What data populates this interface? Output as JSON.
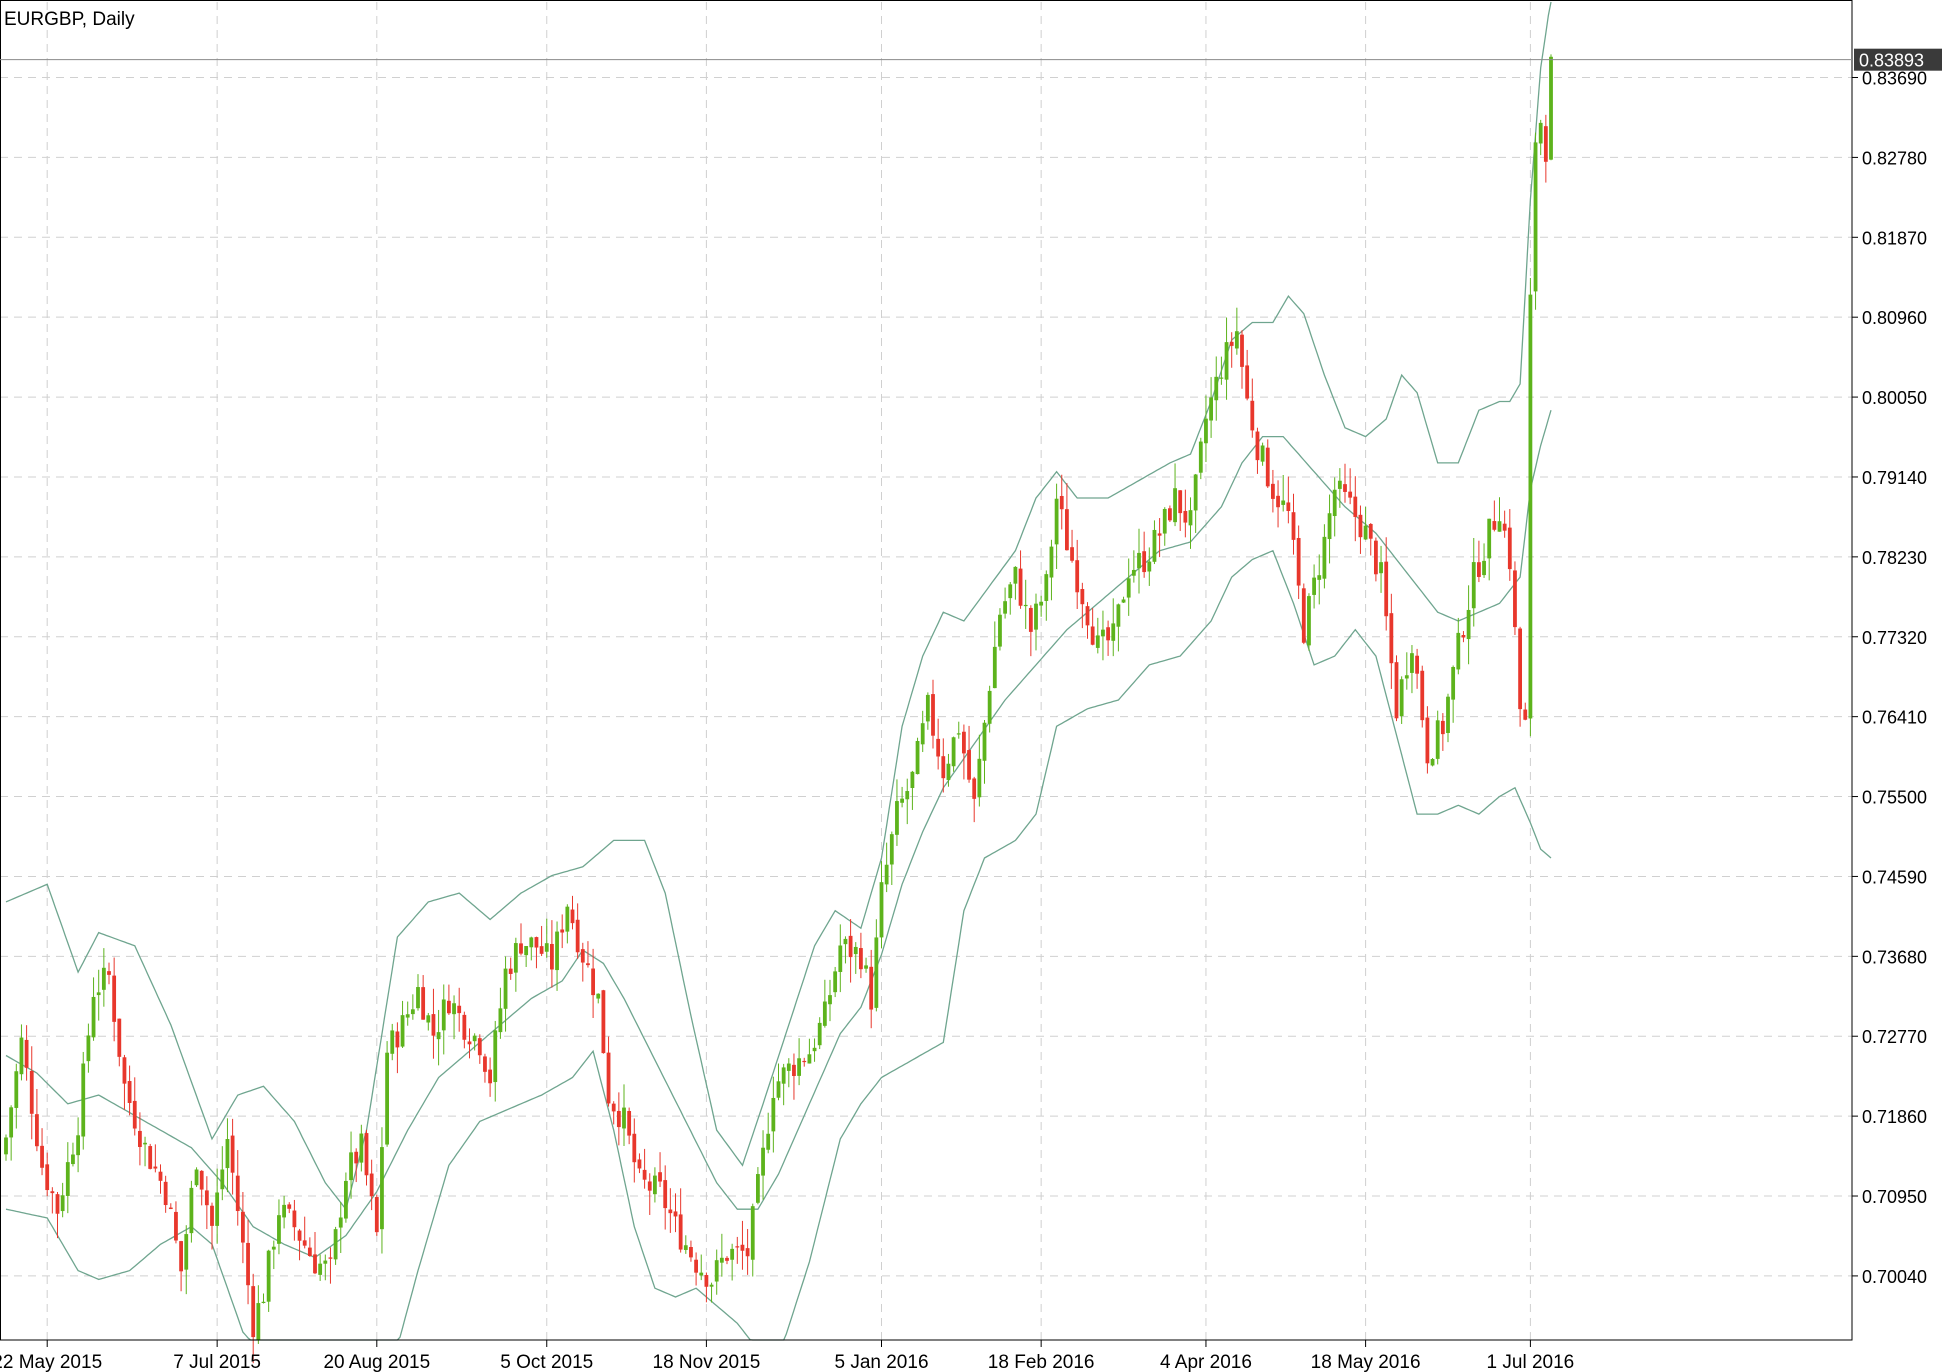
{
  "window": {
    "title": "EURGBP, Daily"
  },
  "colors": {
    "background": "#ffffff",
    "bull": "#5db31c",
    "bear": "#e8372c",
    "band": "#6fa58f",
    "grid": "#d0d0d0",
    "axis": "#000000",
    "price_tag_bg": "#3a3a3a",
    "price_tag_fg": "#ffffff"
  },
  "chart_data": {
    "type": "candlestick",
    "title": "EURGBP, Daily",
    "symbol": "EURGBP",
    "timeframe": "Daily",
    "indicator": "Bollinger Bands",
    "current_price": "0.83893",
    "ylim": [
      0.6931,
      0.8455
    ],
    "y_ticks": [
      "0.83690",
      "0.82780",
      "0.81870",
      "0.80960",
      "0.80050",
      "0.79140",
      "0.78230",
      "0.77320",
      "0.76410",
      "0.75500",
      "0.74590",
      "0.73680",
      "0.72770",
      "0.71860",
      "0.70950",
      "0.70040"
    ],
    "x_ticks": [
      {
        "label": "22 May 2015",
        "index": 8
      },
      {
        "label": "7 Jul 2015",
        "index": 41
      },
      {
        "label": "20 Aug 2015",
        "index": 72
      },
      {
        "label": "5 Oct 2015",
        "index": 105
      },
      {
        "label": "18 Nov 2015",
        "index": 136
      },
      {
        "label": "5 Jan 2016",
        "index": 170
      },
      {
        "label": "18 Feb 2016",
        "index": 201
      },
      {
        "label": "4 Apr 2016",
        "index": 233
      },
      {
        "label": "18 May 2016",
        "index": 264
      },
      {
        "label": "1 Jul 2016",
        "index": 296
      }
    ],
    "candle_count": 297,
    "close_anchors": [
      [
        0,
        0.7162
      ],
      [
        3,
        0.727
      ],
      [
        7,
        0.713
      ],
      [
        10,
        0.708
      ],
      [
        14,
        0.718
      ],
      [
        17,
        0.733
      ],
      [
        20,
        0.7345
      ],
      [
        23,
        0.722
      ],
      [
        27,
        0.715
      ],
      [
        31,
        0.71
      ],
      [
        34,
        0.701
      ],
      [
        37,
        0.714
      ],
      [
        40,
        0.706
      ],
      [
        43,
        0.716
      ],
      [
        45,
        0.708
      ],
      [
        48,
        0.695
      ],
      [
        50,
        0.6985
      ],
      [
        53,
        0.708
      ],
      [
        56,
        0.706
      ],
      [
        60,
        0.702
      ],
      [
        63,
        0.701
      ],
      [
        66,
        0.712
      ],
      [
        69,
        0.715
      ],
      [
        72,
        0.705
      ],
      [
        74,
        0.726
      ],
      [
        77,
        0.729
      ],
      [
        80,
        0.733
      ],
      [
        83,
        0.728
      ],
      [
        86,
        0.732
      ],
      [
        89,
        0.729
      ],
      [
        92,
        0.727
      ],
      [
        94,
        0.723
      ],
      [
        97,
        0.735
      ],
      [
        100,
        0.7385
      ],
      [
        103,
        0.738
      ],
      [
        106,
        0.736
      ],
      [
        109,
        0.743
      ],
      [
        112,
        0.737
      ],
      [
        115,
        0.732
      ],
      [
        117,
        0.721
      ],
      [
        120,
        0.718
      ],
      [
        123,
        0.711
      ],
      [
        127,
        0.71
      ],
      [
        130,
        0.706
      ],
      [
        134,
        0.702
      ],
      [
        137,
        0.7
      ],
      [
        140,
        0.703
      ],
      [
        144,
        0.703
      ],
      [
        147,
        0.714
      ],
      [
        149,
        0.722
      ],
      [
        152,
        0.724
      ],
      [
        156,
        0.726
      ],
      [
        159,
        0.73
      ],
      [
        162,
        0.738
      ],
      [
        166,
        0.737
      ],
      [
        168,
        0.732
      ],
      [
        170,
        0.744
      ],
      [
        173,
        0.753
      ],
      [
        176,
        0.757
      ],
      [
        179,
        0.765
      ],
      [
        182,
        0.758
      ],
      [
        185,
        0.763
      ],
      [
        188,
        0.754
      ],
      [
        191,
        0.768
      ],
      [
        193,
        0.776
      ],
      [
        196,
        0.78
      ],
      [
        199,
        0.774
      ],
      [
        202,
        0.779
      ],
      [
        204,
        0.789
      ],
      [
        206,
        0.784
      ],
      [
        209,
        0.778
      ],
      [
        212,
        0.772
      ],
      [
        215,
        0.773
      ],
      [
        218,
        0.781
      ],
      [
        221,
        0.782
      ],
      [
        224,
        0.785
      ],
      [
        227,
        0.789
      ],
      [
        230,
        0.786
      ],
      [
        233,
        0.798
      ],
      [
        236,
        0.804
      ],
      [
        239,
        0.808
      ],
      [
        241,
        0.8
      ],
      [
        243,
        0.795
      ],
      [
        246,
        0.79
      ],
      [
        249,
        0.787
      ],
      [
        252,
        0.774
      ],
      [
        254,
        0.779
      ],
      [
        256,
        0.784
      ],
      [
        258,
        0.79
      ],
      [
        261,
        0.788
      ],
      [
        264,
        0.785
      ],
      [
        267,
        0.78
      ],
      [
        270,
        0.765
      ],
      [
        273,
        0.773
      ],
      [
        276,
        0.76
      ],
      [
        279,
        0.763
      ],
      [
        282,
        0.772
      ],
      [
        285,
        0.78
      ],
      [
        288,
        0.785
      ],
      [
        290,
        0.788
      ],
      [
        292,
        0.782
      ],
      [
        294,
        0.765
      ],
      [
        295,
        0.763
      ],
      [
        296,
        0.811
      ],
      [
        297,
        0.83
      ],
      [
        298,
        0.832
      ],
      [
        299,
        0.829
      ],
      [
        300,
        0.838
      ]
    ],
    "bands": {
      "upper": [
        [
          0,
          0.743
        ],
        [
          8,
          0.745
        ],
        [
          14,
          0.735
        ],
        [
          18,
          0.7395
        ],
        [
          25,
          0.738
        ],
        [
          32,
          0.729
        ],
        [
          40,
          0.716
        ],
        [
          45,
          0.721
        ],
        [
          50,
          0.722
        ],
        [
          56,
          0.718
        ],
        [
          62,
          0.711
        ],
        [
          66,
          0.708
        ],
        [
          70,
          0.717
        ],
        [
          76,
          0.739
        ],
        [
          82,
          0.743
        ],
        [
          88,
          0.744
        ],
        [
          94,
          0.741
        ],
        [
          100,
          0.744
        ],
        [
          106,
          0.746
        ],
        [
          112,
          0.747
        ],
        [
          118,
          0.75
        ],
        [
          124,
          0.75
        ],
        [
          128,
          0.744
        ],
        [
          133,
          0.73
        ],
        [
          138,
          0.717
        ],
        [
          143,
          0.713
        ],
        [
          147,
          0.72
        ],
        [
          152,
          0.729
        ],
        [
          157,
          0.738
        ],
        [
          161,
          0.742
        ],
        [
          166,
          0.74
        ],
        [
          170,
          0.748
        ],
        [
          174,
          0.763
        ],
        [
          178,
          0.771
        ],
        [
          182,
          0.776
        ],
        [
          186,
          0.775
        ],
        [
          191,
          0.779
        ],
        [
          196,
          0.783
        ],
        [
          200,
          0.789
        ],
        [
          204,
          0.792
        ],
        [
          208,
          0.789
        ],
        [
          214,
          0.789
        ],
        [
          220,
          0.791
        ],
        [
          226,
          0.793
        ],
        [
          230,
          0.794
        ],
        [
          234,
          0.8
        ],
        [
          238,
          0.807
        ],
        [
          242,
          0.809
        ],
        [
          246,
          0.809
        ],
        [
          249,
          0.812
        ],
        [
          252,
          0.81
        ],
        [
          256,
          0.803
        ],
        [
          260,
          0.797
        ],
        [
          264,
          0.796
        ],
        [
          268,
          0.798
        ],
        [
          271,
          0.803
        ],
        [
          274,
          0.801
        ],
        [
          278,
          0.793
        ],
        [
          282,
          0.793
        ],
        [
          286,
          0.799
        ],
        [
          290,
          0.8
        ],
        [
          292,
          0.8
        ],
        [
          294,
          0.802
        ],
        [
          296,
          0.823
        ],
        [
          298,
          0.838
        ],
        [
          300,
          0.846
        ]
      ],
      "middle": [
        [
          0,
          0.7255
        ],
        [
          6,
          0.7235
        ],
        [
          12,
          0.72
        ],
        [
          18,
          0.721
        ],
        [
          24,
          0.719
        ],
        [
          30,
          0.717
        ],
        [
          36,
          0.715
        ],
        [
          42,
          0.711
        ],
        [
          48,
          0.706
        ],
        [
          54,
          0.704
        ],
        [
          60,
          0.7025
        ],
        [
          66,
          0.705
        ],
        [
          72,
          0.71
        ],
        [
          78,
          0.717
        ],
        [
          84,
          0.723
        ],
        [
          90,
          0.726
        ],
        [
          96,
          0.729
        ],
        [
          102,
          0.732
        ],
        [
          108,
          0.734
        ],
        [
          112,
          0.7375
        ],
        [
          116,
          0.736
        ],
        [
          120,
          0.732
        ],
        [
          126,
          0.725
        ],
        [
          132,
          0.718
        ],
        [
          138,
          0.711
        ],
        [
          142,
          0.708
        ],
        [
          146,
          0.708
        ],
        [
          150,
          0.712
        ],
        [
          156,
          0.72
        ],
        [
          162,
          0.728
        ],
        [
          166,
          0.731
        ],
        [
          170,
          0.737
        ],
        [
          174,
          0.745
        ],
        [
          178,
          0.751
        ],
        [
          182,
          0.756
        ],
        [
          188,
          0.761
        ],
        [
          194,
          0.766
        ],
        [
          200,
          0.77
        ],
        [
          206,
          0.774
        ],
        [
          212,
          0.777
        ],
        [
          218,
          0.78
        ],
        [
          224,
          0.783
        ],
        [
          230,
          0.784
        ],
        [
          236,
          0.788
        ],
        [
          240,
          0.793
        ],
        [
          244,
          0.796
        ],
        [
          248,
          0.796
        ],
        [
          254,
          0.792
        ],
        [
          260,
          0.788
        ],
        [
          266,
          0.785
        ],
        [
          270,
          0.782
        ],
        [
          274,
          0.779
        ],
        [
          278,
          0.776
        ],
        [
          282,
          0.775
        ],
        [
          286,
          0.776
        ],
        [
          290,
          0.777
        ],
        [
          294,
          0.78
        ],
        [
          296,
          0.79
        ],
        [
          298,
          0.795
        ],
        [
          300,
          0.799
        ]
      ],
      "lower": [
        [
          0,
          0.708
        ],
        [
          8,
          0.707
        ],
        [
          14,
          0.701
        ],
        [
          18,
          0.7
        ],
        [
          24,
          0.701
        ],
        [
          30,
          0.704
        ],
        [
          36,
          0.706
        ],
        [
          40,
          0.704
        ],
        [
          46,
          0.694
        ],
        [
          52,
          0.69
        ],
        [
          58,
          0.687
        ],
        [
          64,
          0.689
        ],
        [
          70,
          0.693
        ],
        [
          74,
          0.688
        ],
        [
          80,
          0.701
        ],
        [
          86,
          0.713
        ],
        [
          92,
          0.718
        ],
        [
          98,
          0.7195
        ],
        [
          104,
          0.721
        ],
        [
          110,
          0.723
        ],
        [
          114,
          0.726
        ],
        [
          118,
          0.717
        ],
        [
          122,
          0.706
        ],
        [
          126,
          0.699
        ],
        [
          130,
          0.698
        ],
        [
          134,
          0.699
        ],
        [
          138,
          0.697
        ],
        [
          142,
          0.695
        ],
        [
          146,
          0.692
        ],
        [
          150,
          0.691
        ],
        [
          156,
          0.702
        ],
        [
          162,
          0.716
        ],
        [
          166,
          0.72
        ],
        [
          170,
          0.723
        ],
        [
          176,
          0.725
        ],
        [
          182,
          0.727
        ],
        [
          186,
          0.742
        ],
        [
          190,
          0.748
        ],
        [
          196,
          0.75
        ],
        [
          200,
          0.753
        ],
        [
          204,
          0.763
        ],
        [
          210,
          0.765
        ],
        [
          216,
          0.766
        ],
        [
          222,
          0.77
        ],
        [
          228,
          0.771
        ],
        [
          234,
          0.775
        ],
        [
          238,
          0.78
        ],
        [
          242,
          0.782
        ],
        [
          246,
          0.783
        ],
        [
          250,
          0.777
        ],
        [
          254,
          0.77
        ],
        [
          258,
          0.771
        ],
        [
          262,
          0.774
        ],
        [
          266,
          0.771
        ],
        [
          270,
          0.762
        ],
        [
          274,
          0.753
        ],
        [
          278,
          0.753
        ],
        [
          282,
          0.754
        ],
        [
          286,
          0.753
        ],
        [
          290,
          0.755
        ],
        [
          293,
          0.756
        ],
        [
          296,
          0.752
        ],
        [
          298,
          0.749
        ],
        [
          300,
          0.748
        ]
      ]
    }
  }
}
